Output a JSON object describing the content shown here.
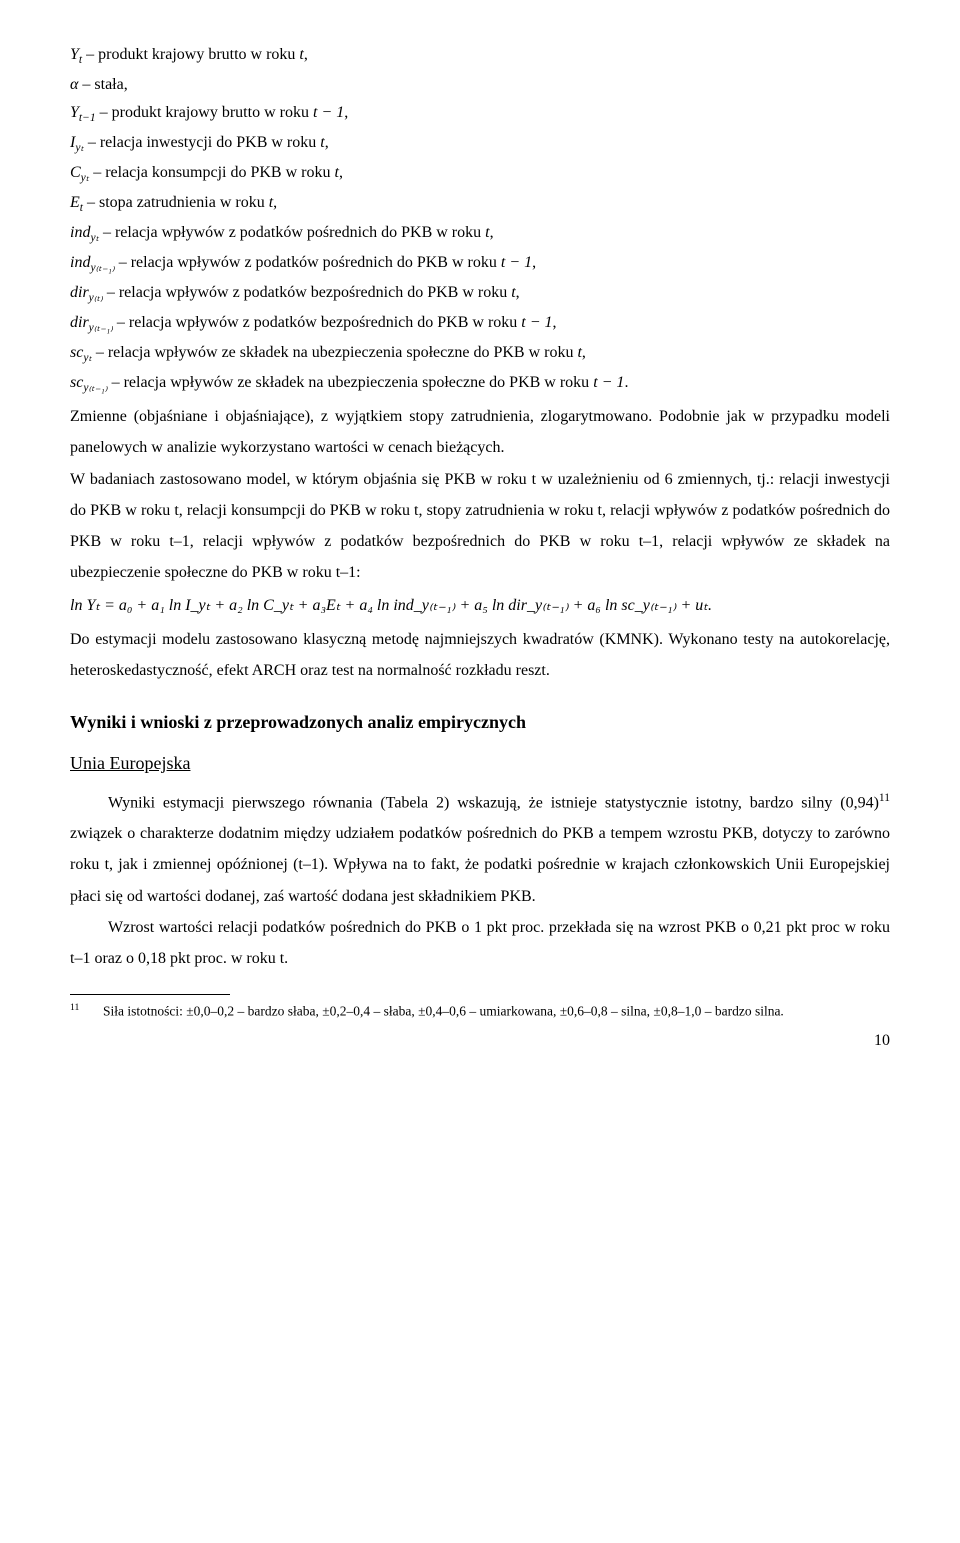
{
  "defs": {
    "d1_var": "Y",
    "d1_sub": "t",
    "d1_txt": " – produkt krajowy brutto w roku ",
    "d1_vt": "t",
    "d1_end": ",",
    "d2_var": "α",
    "d2_txt": " – stała,",
    "d3_var": "Y",
    "d3_sub": "t−1",
    "d3_txt": " – produkt krajowy brutto w roku ",
    "d3_vt": "t − 1",
    "d3_end": ",",
    "d4_var": "I",
    "d4_sub": "yₜ",
    "d4_txt": " – relacja inwestycji do PKB w roku ",
    "d4_vt": "t",
    "d4_end": ",",
    "d5_var": "C",
    "d5_sub": "yₜ",
    "d5_txt": " – relacja konsumpcji do PKB w roku ",
    "d5_vt": "t",
    "d5_end": ",",
    "d6_var": "E",
    "d6_sub": "t",
    "d6_txt": " – stopa zatrudnienia w roku ",
    "d6_vt": "t",
    "d6_end": ",",
    "d7_var": "ind",
    "d7_sub": "yₜ",
    "d7_txt": " – relacja wpływów z podatków pośrednich do PKB w roku ",
    "d7_vt": "t",
    "d7_end": ",",
    "d8_var": "ind",
    "d8_sub": "y₍ₜ₋₁₎",
    "d8_txt": " – relacja wpływów z podatków pośrednich do PKB w roku ",
    "d8_vt": "t − 1",
    "d8_end": ",",
    "d9_var": "dir",
    "d9_sub": "y₍ₜ₎",
    "d9_txt": " – relacja wpływów z podatków bezpośrednich do PKB w roku ",
    "d9_vt": "t",
    "d9_end": ",",
    "d10_var": "dir",
    "d10_sub": "y₍ₜ₋₁₎",
    "d10_txt": " – relacja wpływów z podatków bezpośrednich do PKB w roku ",
    "d10_vt": "t − 1",
    "d10_end": ",",
    "d11_var": "sc",
    "d11_sub": "yₜ",
    "d11_txt": " – relacja wpływów ze składek na ubezpieczenia społeczne do PKB w roku ",
    "d11_vt": "t",
    "d11_end": ",",
    "d12_var": "sc",
    "d12_sub": "y₍ₜ₋₁₎",
    "d12_txt": " – relacja wpływów ze składek na ubezpieczenia społeczne do PKB w roku ",
    "d12_vt": "t − 1",
    "d12_end": "."
  },
  "para1": "Zmienne (objaśniane i objaśniające), z wyjątkiem stopy zatrudnienia, zlogarytmowano. Podobnie jak w przypadku modeli panelowych w analizie wykorzystano wartości w cenach bieżących.",
  "para2": "W badaniach zastosowano model, w którym objaśnia się PKB w roku t w uzależnieniu od 6 zmiennych, tj.: relacji inwestycji do PKB w roku t, relacji konsumpcji do PKB w roku t, stopy zatrudnienia w roku t, relacji wpływów z podatków pośrednich do PKB w roku t–1, relacji wpływów z podatków bezpośrednich do PKB w roku t–1, relacji wpływów ze składek na ubezpieczenie społeczne do PKB w roku t–1:",
  "equation": "ln Yₜ = a₀ + a₁ ln I_yₜ + a₂ ln C_yₜ + a₃Eₜ + a₄ ln ind_y₍ₜ₋₁₎ + a₅ ln dir_y₍ₜ₋₁₎ + a₆ ln sc_y₍ₜ₋₁₎ + uₜ.",
  "para3": "Do estymacji modelu zastosowano klasyczną metodę najmniejszych kwadratów (KMNK). Wykonano testy na autokorelację, heteroskedastyczność, efekt ARCH oraz test na normalność rozkładu reszt.",
  "heading1": "Wyniki i wnioski z przeprowadzonych analiz empirycznych",
  "heading2": "Unia Europejska",
  "para4a": "Wyniki estymacji pierwszego równania (Tabela 2) wskazują, że istnieje statystycznie istotny, bardzo silny (0,94)",
  "fnref": "11",
  "para4b": " związek o charakterze dodatnim między udziałem podatków pośrednich do PKB a tempem wzrostu PKB, dotyczy to zarówno roku t, jak i zmiennej opóźnionej (t–1). Wpływa na to fakt, że podatki pośrednie w krajach członkowskich Unii Europejskiej płaci się od wartości dodanej, zaś wartość dodana jest składnikiem PKB.",
  "para5": "Wzrost wartości relacji podatków pośrednich do PKB o 1 pkt proc. przekłada się na wzrost PKB o 0,21 pkt proc w roku t–1 oraz o 0,18 pkt proc. w roku t.",
  "footnote_num": "11",
  "footnote_text": "Siła istotności: ±0,0–0,2 – bardzo słaba, ±0,2–0,4 – słaba, ±0,4–0,6 – umiarkowana, ±0,6–0,8 – silna, ±0,8–1,0 – bardzo silna.",
  "page_number": "10",
  "colors": {
    "text": "#000000",
    "background": "#ffffff"
  },
  "fonts": {
    "family": "Times New Roman",
    "body_size_pt": 12,
    "footnote_size_pt": 10
  }
}
